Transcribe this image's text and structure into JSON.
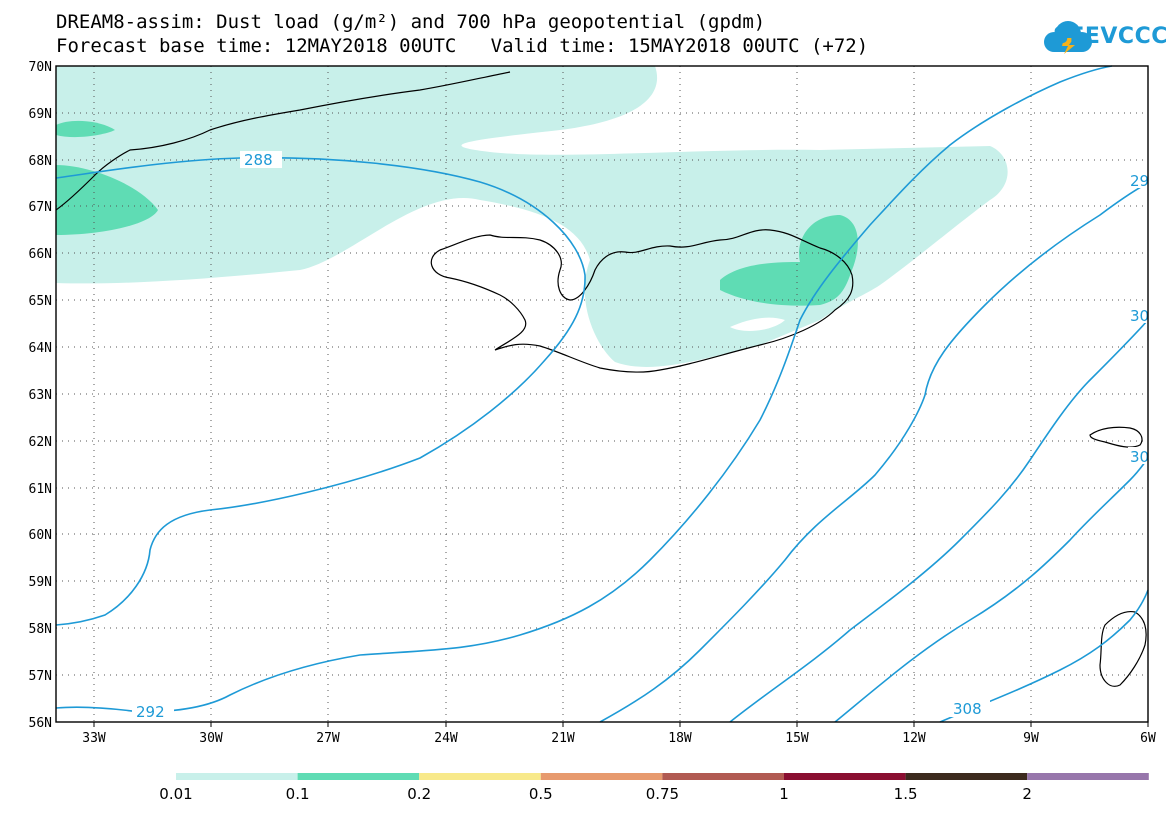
{
  "title_line1": "DREAM8-assim: Dust load (g/m²) and 700 hPa geopotential (gpdm)",
  "title_line2": "Forecast base time: 12MAY2018 00UTC   Valid time: 15MAY2018 00UTC (+72)",
  "logo_text": "SEEVCCC",
  "logo_icon": "cloud-logo-icon",
  "lat_labels": [
    "70N",
    "69N",
    "68N",
    "67N",
    "66N",
    "65N",
    "64N",
    "63N",
    "62N",
    "61N",
    "60N",
    "59N",
    "58N",
    "57N",
    "56N"
  ],
  "lon_labels": [
    "33W",
    "30W",
    "27W",
    "24W",
    "21W",
    "18W",
    "15W",
    "12W",
    "9W",
    "6W"
  ],
  "contour_labels": [
    "288",
    "292",
    "29",
    "30",
    "30",
    "308"
  ],
  "colorbar": {
    "labels": [
      "0.01",
      "0.1",
      "0.2",
      "0.5",
      "0.75",
      "1",
      "1.5",
      "2"
    ],
    "colors": [
      "#c8f0ea",
      "#5fdcb4",
      "#f8e98a",
      "#e79a6e",
      "#b15a52",
      "#8a0e31",
      "#3c2a1e",
      "#9776ab"
    ]
  },
  "colors": {
    "contour": "#1e9ad6",
    "dust_low": "#c8f0ea",
    "dust_mid": "#5fdcb4"
  }
}
